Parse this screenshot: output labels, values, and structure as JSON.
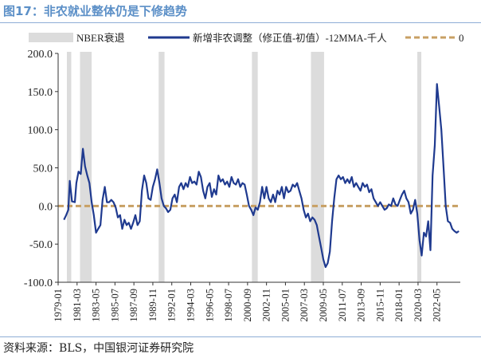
{
  "title": "图17：非农就业整体仍是下修趋势",
  "source": "资料来源：BLS，中国银河证券研究院",
  "colors": {
    "line": "#1f3a8f",
    "zero": "#c8a064",
    "recession": "#dcdcdc",
    "title": "#5b8fc7"
  },
  "chart_data": {
    "type": "line",
    "ylim": [
      -100,
      200
    ],
    "yticks": [
      "200.0",
      "150.0",
      "100.0",
      "50.0",
      "0.0",
      "-50.0",
      "-100.0"
    ],
    "ytick_values": [
      200,
      150,
      100,
      50,
      0,
      -50,
      -100
    ],
    "xlim": [
      "1979-01",
      "2025-01"
    ],
    "xtick_labels": [
      "1979-01",
      "1981-03",
      "1983-05",
      "1985-07",
      "1987-09",
      "1989-11",
      "1992-01",
      "1994-03",
      "1996-05",
      "1998-07",
      "2000-09",
      "2002-11",
      "2005-01",
      "2007-03",
      "2009-05",
      "2011-07",
      "2013-09",
      "2015-11",
      "2018-01",
      "2020-03",
      "2022-05"
    ],
    "legend": [
      "NBER衰退",
      "新增非农调整（修正值-初值）-12MMA-千人",
      "0"
    ],
    "recessions": [
      [
        "1980-01",
        "1980-07"
      ],
      [
        "1981-07",
        "1982-11"
      ],
      [
        "1990-07",
        "1991-03"
      ],
      [
        "2001-03",
        "2001-11"
      ],
      [
        "2007-12",
        "2009-06"
      ],
      [
        "2020-02",
        "2020-04"
      ]
    ],
    "series": [
      {
        "name": "新增非农调整（修正值-初值）-12MMA-千人",
        "points": [
          [
            "1979-09",
            -18
          ],
          [
            "1979-12",
            -12
          ],
          [
            "1980-03",
            -5
          ],
          [
            "1980-05",
            33
          ],
          [
            "1980-08",
            6
          ],
          [
            "1980-12",
            5
          ],
          [
            "1981-02",
            30
          ],
          [
            "1981-05",
            45
          ],
          [
            "1981-08",
            42
          ],
          [
            "1981-11",
            75
          ],
          [
            "1982-02",
            52
          ],
          [
            "1982-05",
            40
          ],
          [
            "1982-08",
            30
          ],
          [
            "1982-11",
            5
          ],
          [
            "1983-02",
            -12
          ],
          [
            "1983-05",
            -35
          ],
          [
            "1983-08",
            -30
          ],
          [
            "1983-11",
            -25
          ],
          [
            "1984-02",
            8
          ],
          [
            "1984-05",
            25
          ],
          [
            "1984-08",
            5
          ],
          [
            "1984-11",
            5
          ],
          [
            "1985-02",
            8
          ],
          [
            "1985-05",
            5
          ],
          [
            "1985-08",
            -2
          ],
          [
            "1985-11",
            -15
          ],
          [
            "1986-02",
            -12
          ],
          [
            "1986-05",
            -30
          ],
          [
            "1986-08",
            -18
          ],
          [
            "1986-11",
            -25
          ],
          [
            "1987-02",
            -22
          ],
          [
            "1987-05",
            -30
          ],
          [
            "1987-08",
            -22
          ],
          [
            "1987-11",
            -12
          ],
          [
            "1988-02",
            -25
          ],
          [
            "1988-05",
            -20
          ],
          [
            "1988-08",
            20
          ],
          [
            "1988-11",
            40
          ],
          [
            "1989-02",
            30
          ],
          [
            "1989-05",
            10
          ],
          [
            "1989-08",
            8
          ],
          [
            "1989-11",
            25
          ],
          [
            "1990-02",
            35
          ],
          [
            "1990-05",
            48
          ],
          [
            "1990-08",
            30
          ],
          [
            "1990-11",
            10
          ],
          [
            "1991-02",
            0
          ],
          [
            "1991-05",
            -3
          ],
          [
            "1991-08",
            -8
          ],
          [
            "1991-11",
            -5
          ],
          [
            "1992-02",
            10
          ],
          [
            "1992-05",
            15
          ],
          [
            "1992-08",
            5
          ],
          [
            "1992-11",
            25
          ],
          [
            "1993-02",
            30
          ],
          [
            "1993-05",
            22
          ],
          [
            "1993-08",
            30
          ],
          [
            "1993-11",
            25
          ],
          [
            "1994-02",
            38
          ],
          [
            "1994-05",
            30
          ],
          [
            "1994-08",
            32
          ],
          [
            "1994-11",
            28
          ],
          [
            "1995-02",
            45
          ],
          [
            "1995-05",
            38
          ],
          [
            "1995-08",
            20
          ],
          [
            "1995-11",
            10
          ],
          [
            "1996-02",
            25
          ],
          [
            "1996-05",
            30
          ],
          [
            "1996-08",
            12
          ],
          [
            "1996-11",
            22
          ],
          [
            "1997-02",
            15
          ],
          [
            "1997-05",
            40
          ],
          [
            "1997-08",
            32
          ],
          [
            "1997-11",
            35
          ],
          [
            "1998-02",
            28
          ],
          [
            "1998-05",
            32
          ],
          [
            "1998-08",
            25
          ],
          [
            "1998-11",
            38
          ],
          [
            "1999-02",
            30
          ],
          [
            "1999-05",
            28
          ],
          [
            "1999-08",
            35
          ],
          [
            "1999-11",
            25
          ],
          [
            "2000-02",
            30
          ],
          [
            "2000-05",
            28
          ],
          [
            "2000-08",
            15
          ],
          [
            "2000-11",
            0
          ],
          [
            "2001-02",
            -5
          ],
          [
            "2001-05",
            -12
          ],
          [
            "2001-08",
            -2
          ],
          [
            "2001-11",
            -5
          ],
          [
            "2002-02",
            5
          ],
          [
            "2002-05",
            25
          ],
          [
            "2002-08",
            10
          ],
          [
            "2002-11",
            25
          ],
          [
            "2003-02",
            10
          ],
          [
            "2003-05",
            5
          ],
          [
            "2003-08",
            15
          ],
          [
            "2003-11",
            5
          ],
          [
            "2004-02",
            20
          ],
          [
            "2004-05",
            15
          ],
          [
            "2004-08",
            25
          ],
          [
            "2004-11",
            10
          ],
          [
            "2005-02",
            25
          ],
          [
            "2005-05",
            18
          ],
          [
            "2005-08",
            20
          ],
          [
            "2005-11",
            28
          ],
          [
            "2006-02",
            25
          ],
          [
            "2006-05",
            30
          ],
          [
            "2006-08",
            20
          ],
          [
            "2006-11",
            10
          ],
          [
            "2007-02",
            -5
          ],
          [
            "2007-05",
            -15
          ],
          [
            "2007-08",
            -10
          ],
          [
            "2007-11",
            -20
          ],
          [
            "2008-02",
            -15
          ],
          [
            "2008-05",
            -18
          ],
          [
            "2008-08",
            -25
          ],
          [
            "2008-11",
            -40
          ],
          [
            "2009-02",
            -55
          ],
          [
            "2009-05",
            -70
          ],
          [
            "2009-08",
            -80
          ],
          [
            "2009-11",
            -75
          ],
          [
            "2010-02",
            -60
          ],
          [
            "2010-05",
            -20
          ],
          [
            "2010-08",
            10
          ],
          [
            "2010-11",
            35
          ],
          [
            "2011-02",
            40
          ],
          [
            "2011-05",
            35
          ],
          [
            "2011-08",
            38
          ],
          [
            "2011-11",
            30
          ],
          [
            "2012-02",
            35
          ],
          [
            "2012-05",
            30
          ],
          [
            "2012-08",
            38
          ],
          [
            "2012-11",
            25
          ],
          [
            "2013-02",
            30
          ],
          [
            "2013-05",
            25
          ],
          [
            "2013-08",
            20
          ],
          [
            "2013-11",
            30
          ],
          [
            "2014-02",
            25
          ],
          [
            "2014-05",
            28
          ],
          [
            "2014-08",
            18
          ],
          [
            "2014-11",
            22
          ],
          [
            "2015-02",
            10
          ],
          [
            "2015-05",
            5
          ],
          [
            "2015-08",
            0
          ],
          [
            "2015-11",
            5
          ],
          [
            "2016-02",
            0
          ],
          [
            "2016-05",
            -5
          ],
          [
            "2016-08",
            -3
          ],
          [
            "2016-11",
            2
          ],
          [
            "2017-02",
            0
          ],
          [
            "2017-05",
            10
          ],
          [
            "2017-08",
            2
          ],
          [
            "2017-11",
            0
          ],
          [
            "2018-02",
            8
          ],
          [
            "2018-05",
            15
          ],
          [
            "2018-08",
            20
          ],
          [
            "2018-11",
            10
          ],
          [
            "2019-02",
            5
          ],
          [
            "2019-05",
            -10
          ],
          [
            "2019-08",
            -5
          ],
          [
            "2019-11",
            8
          ],
          [
            "2020-02",
            -10
          ],
          [
            "2020-05",
            -45
          ],
          [
            "2020-08",
            -65
          ],
          [
            "2020-11",
            -35
          ],
          [
            "2021-02",
            -40
          ],
          [
            "2021-05",
            -20
          ],
          [
            "2021-08",
            -58
          ],
          [
            "2021-11",
            40
          ],
          [
            "2022-02",
            80
          ],
          [
            "2022-05",
            160
          ],
          [
            "2022-08",
            130
          ],
          [
            "2022-11",
            100
          ],
          [
            "2023-02",
            50
          ],
          [
            "2023-05",
            0
          ],
          [
            "2023-08",
            -20
          ],
          [
            "2023-11",
            -22
          ],
          [
            "2024-02",
            -30
          ],
          [
            "2024-05",
            -33
          ],
          [
            "2024-08",
            -35
          ],
          [
            "2024-11",
            -33
          ]
        ]
      }
    ]
  }
}
